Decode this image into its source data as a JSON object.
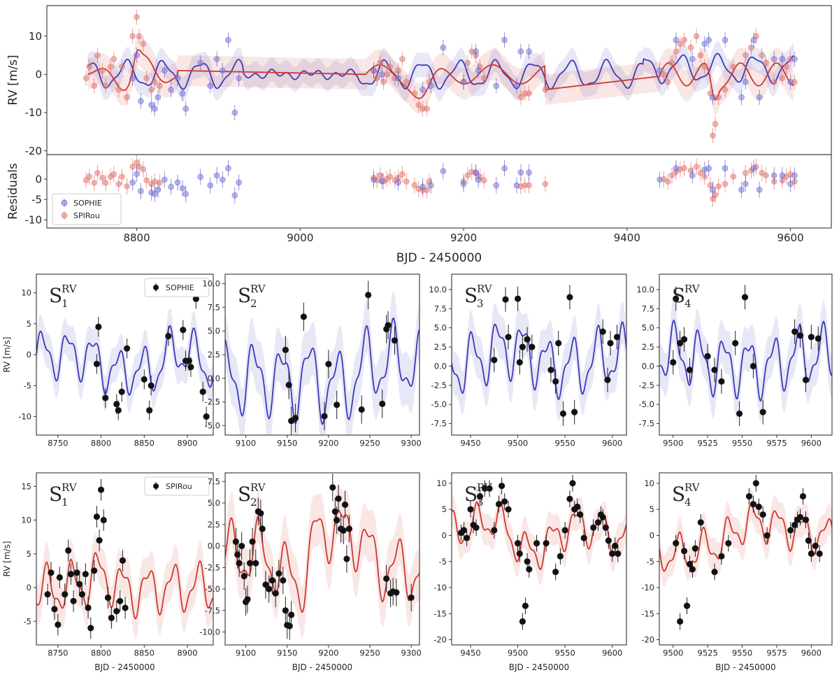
{
  "chart_data": [
    {
      "id": "main-rv",
      "type": "scatter",
      "ylabel": "RV [m/s]",
      "xlim": [
        8690,
        9650
      ],
      "ylim": [
        -21,
        18
      ],
      "yticks": [
        -20,
        -10,
        0,
        10
      ],
      "series": [
        {
          "name": "SOPHIE",
          "color": "#3a3ab8",
          "x": [
            8795,
            8800,
            8805,
            8818,
            8822,
            8826,
            8834,
            8842,
            8850,
            8856,
            8860,
            8878,
            8890,
            8898,
            8905,
            8912,
            8920,
            8925,
            9090,
            9100,
            9120,
            9150,
            9160,
            9175,
            9200,
            9215,
            9218,
            9240,
            9250,
            9265,
            9270,
            9280,
            9440,
            9460,
            9480,
            9495,
            9500,
            9505,
            9520,
            9540,
            9545,
            9555,
            9562,
            9580,
            9590,
            9600,
            9605
          ],
          "y": [
            -1,
            5,
            -7,
            -8,
            -9,
            -6,
            1,
            -4,
            -1,
            -5,
            -9,
            3,
            -3,
            4,
            1,
            9,
            -10,
            -1,
            1,
            0,
            -1,
            -4,
            -3,
            7,
            -2,
            6,
            1,
            -3,
            9,
            -3,
            6,
            6,
            1,
            9,
            4,
            8,
            9,
            -6,
            9,
            -6,
            -2,
            9,
            -6,
            4,
            4,
            -2,
            4
          ],
          "errors": [
            2,
            2,
            2,
            2,
            2,
            2,
            2,
            2,
            2,
            2,
            2,
            2,
            2,
            2,
            2,
            2,
            2,
            2,
            2,
            2,
            2,
            2,
            2,
            2,
            2,
            2,
            2,
            2,
            2,
            2,
            2,
            2,
            2,
            2,
            2,
            2,
            2,
            2,
            2,
            2,
            2,
            2,
            2,
            2,
            2,
            2,
            2
          ]
        },
        {
          "name": "SPIRou",
          "color": "#d9534f",
          "x": [
            8738,
            8742,
            8748,
            8752,
            8758,
            8762,
            8768,
            8772,
            8778,
            8782,
            8788,
            8795,
            8800,
            8803,
            8808,
            8812,
            8818,
            8822,
            8828,
            9090,
            9094,
            9098,
            9102,
            9106,
            9110,
            9116,
            9120,
            9125,
            9130,
            9140,
            9145,
            9150,
            9155,
            9158,
            9200,
            9205,
            9210,
            9215,
            9220,
            9225,
            9270,
            9275,
            9280,
            9300,
            9445,
            9450,
            9455,
            9460,
            9465,
            9470,
            9478,
            9485,
            9490,
            9495,
            9502,
            9505,
            9508,
            9512,
            9520,
            9530,
            9545,
            9552,
            9558,
            9565,
            9570,
            9580,
            9590,
            9595,
            9600,
            9605
          ],
          "y": [
            -1,
            2,
            -3,
            5,
            1,
            -3,
            2,
            4,
            -4,
            2,
            -6,
            10,
            15,
            10,
            8,
            -1,
            -4,
            -2,
            -3,
            1,
            -1,
            3,
            -2,
            0,
            2,
            -1,
            1,
            4,
            -2,
            -5,
            -8,
            -9,
            -9,
            -2,
            -2,
            3,
            6,
            5,
            2,
            -1,
            -6,
            -5,
            -5,
            -4,
            0,
            -2,
            3,
            6,
            8,
            9,
            7,
            10,
            5,
            2,
            -5,
            -16,
            -13,
            -6,
            -4,
            2,
            5,
            7,
            10,
            5,
            3,
            -2,
            -1,
            2,
            4,
            -2
          ],
          "errors": [
            2,
            2,
            2,
            2,
            2,
            2,
            2,
            2,
            2,
            2,
            2,
            2,
            2,
            2,
            2,
            2,
            2,
            2,
            2,
            2,
            2,
            2,
            2,
            2,
            2,
            2,
            2,
            2,
            2,
            2,
            2,
            2,
            2,
            2,
            2,
            2,
            2,
            2,
            2,
            2,
            2,
            2,
            2,
            2,
            2,
            2,
            2,
            2,
            2,
            2,
            2,
            2,
            2,
            2,
            2,
            2,
            2,
            2,
            2,
            2,
            2,
            2,
            2,
            2,
            2,
            2,
            2,
            2,
            2,
            2
          ]
        }
      ]
    },
    {
      "id": "main-residuals",
      "type": "scatter",
      "ylabel": "Residuals",
      "xlabel": "BJD - 2450000",
      "xlim": [
        8690,
        9650
      ],
      "xticks": [
        8800,
        9000,
        9200,
        9400,
        9600
      ],
      "ylim": [
        -12,
        6
      ],
      "yticks": [
        -10,
        -5,
        0
      ],
      "legend": {
        "position": "lower-left",
        "entries": [
          "SOPHIE",
          "SPIRou"
        ]
      }
    },
    {
      "id": "sophie-1",
      "type": "line",
      "instrument": "SOPHIE",
      "label": "S",
      "sub": "1",
      "sup": "RV",
      "legend": "SOPHIE",
      "ylabel": "RV [m/s]",
      "xlim": [
        8725,
        8930
      ],
      "xticks": [
        8750,
        8800,
        8850,
        8900
      ],
      "ylim": [
        -13,
        13
      ],
      "yticks": [
        -10,
        -5,
        0,
        5,
        10
      ],
      "tick_labels": [
        "-10",
        "-5",
        "0",
        "5",
        "10"
      ],
      "x": [
        8795,
        8797,
        8805,
        8818,
        8820,
        8824,
        8830,
        8850,
        8856,
        8858,
        8878,
        8895,
        8898,
        8902,
        8904,
        8910,
        8918,
        8922
      ],
      "y": [
        -1.5,
        4.5,
        -7,
        -8,
        -9,
        -6,
        1,
        -4,
        -9,
        -5,
        3,
        4,
        -1,
        -1,
        -2,
        9,
        -6,
        -10
      ]
    },
    {
      "id": "sophie-2",
      "type": "line",
      "instrument": "SOPHIE",
      "label": "S",
      "sub": "2",
      "sup": "RV",
      "ylabel": "",
      "xlim": [
        9075,
        9310
      ],
      "xticks": [
        9100,
        9150,
        9200,
        9250,
        9300
      ],
      "ylim": [
        -6,
        11
      ],
      "yticks": [
        -5,
        -2.5,
        0,
        2.5,
        5,
        7.5,
        10
      ],
      "tick_labels": [
        "-5.0",
        "-2.5",
        "0.0",
        "2.5",
        "5.0",
        "7.5",
        "10.0"
      ],
      "x": [
        9148,
        9152,
        9155,
        9160,
        9170,
        9195,
        9200,
        9210,
        9240,
        9248,
        9265,
        9270,
        9272,
        9280
      ],
      "y": [
        3,
        -0.7,
        -4.5,
        -4.2,
        6.5,
        -4,
        1.5,
        -2.8,
        -3.3,
        8.8,
        -2.7,
        5.2,
        5.6,
        4
      ],
      "errors": [
        1.5,
        1.5,
        1.5,
        1.5,
        1.5,
        1.5,
        1.5,
        1.5,
        1.5,
        1.5,
        1.5,
        1.5,
        1.5,
        1.5
      ]
    },
    {
      "id": "sophie-3",
      "type": "line",
      "instrument": "SOPHIE",
      "label": "S",
      "sub": "3",
      "sup": "RV",
      "ylabel": "",
      "xlim": [
        9430,
        9615
      ],
      "xticks": [
        9450,
        9500,
        9550,
        9600
      ],
      "ylim": [
        -9,
        12
      ],
      "yticks": [
        -7.5,
        -5,
        -2.5,
        0,
        2.5,
        5,
        7.5,
        10
      ],
      "tick_labels": [
        "-7.5",
        "-5.0",
        "-2.5",
        "0.0",
        "2.5",
        "5.0",
        "7.5",
        "10.0"
      ],
      "x": [
        9475,
        9487,
        9490,
        9500,
        9502,
        9505,
        9510,
        9515,
        9535,
        9540,
        9543,
        9548,
        9555,
        9560,
        9590,
        9595,
        9598,
        9605
      ],
      "y": [
        0.8,
        8.7,
        3.8,
        8.8,
        0.5,
        2.5,
        3.5,
        2.5,
        -0.5,
        -2,
        3,
        -6.2,
        9,
        -6,
        4.5,
        -1.8,
        3,
        3.8
      ]
    },
    {
      "id": "sophie-4",
      "type": "line",
      "instrument": "SOPHIE",
      "label": "S",
      "sub": "4",
      "sup": "RV",
      "ylabel": "",
      "xlim": [
        9490,
        9615
      ],
      "xticks": [
        9500,
        9525,
        9550,
        9575,
        9600
      ],
      "ylim": [
        -9,
        12
      ],
      "yticks": [
        -7.5,
        -5,
        -2.5,
        0,
        2.5,
        5,
        7.5,
        10
      ],
      "tick_labels": [
        "-7.5",
        "-5.0",
        "-2.5",
        "0.0",
        "2.5",
        "5.0",
        "7.5",
        "10.0"
      ],
      "x": [
        9500,
        9502,
        9505,
        9508,
        9512,
        9525,
        9530,
        9535,
        9545,
        9548,
        9552,
        9558,
        9565,
        9588,
        9592,
        9596,
        9600,
        9605
      ],
      "y": [
        0.5,
        8.8,
        3,
        3.5,
        -0.5,
        1.3,
        -0.5,
        -2,
        3,
        -6.2,
        9,
        0,
        -6,
        4.5,
        4,
        -1.8,
        3.8,
        3.6
      ]
    },
    {
      "id": "spirou-1",
      "type": "line",
      "instrument": "SPIRou",
      "label": "S",
      "sub": "1",
      "sup": "RV",
      "legend": "SPIRou",
      "ylabel": "RV [m/s]",
      "xlabel": "BJD - 2450000",
      "xlim": [
        8725,
        8930
      ],
      "xticks": [
        8750,
        8800,
        8850,
        8900
      ],
      "ylim": [
        -8.5,
        17
      ],
      "yticks": [
        -5,
        0,
        5,
        10,
        15
      ],
      "tick_labels": [
        "-5",
        "0",
        "5",
        "10",
        "15"
      ],
      "x": [
        8738,
        8742,
        8746,
        8750,
        8752,
        8758,
        8762,
        8765,
        8768,
        8772,
        8775,
        8778,
        8782,
        8785,
        8788,
        8792,
        8795,
        8798,
        8800,
        8803,
        8808,
        8812,
        8818,
        8822,
        8825,
        8828
      ],
      "y": [
        -1,
        2.2,
        -3.2,
        -5.5,
        1.5,
        -1,
        5.5,
        2,
        -2,
        2.2,
        0.5,
        -1,
        2,
        -3,
        -6,
        2.5,
        10.5,
        7,
        14.5,
        10,
        -1.5,
        -4.5,
        -3.5,
        -2,
        4,
        -3
      ]
    },
    {
      "id": "spirou-2",
      "type": "line",
      "instrument": "SPIRou",
      "label": "S",
      "sub": "2",
      "sup": "RV",
      "ylabel": "",
      "xlabel": "BJD - 2450000",
      "xlim": [
        9075,
        9310
      ],
      "xticks": [
        9100,
        9150,
        9200,
        9250,
        9300
      ],
      "ylim": [
        -11.5,
        8.5
      ],
      "yticks": [
        -10,
        -7.5,
        -5,
        -2.5,
        0,
        2.5,
        5,
        7.5
      ],
      "tick_labels": [
        "-10.0",
        "-7.5",
        "-5.0",
        "-2.5",
        "0.0",
        "2.5",
        "5.0",
        "7.5"
      ],
      "x": [
        9088,
        9090,
        9092,
        9095,
        9098,
        9100,
        9102,
        9105,
        9108,
        9112,
        9115,
        9118,
        9120,
        9124,
        9128,
        9132,
        9136,
        9140,
        9145,
        9148,
        9150,
        9153,
        9155,
        9205,
        9208,
        9210,
        9212,
        9215,
        9218,
        9220,
        9222,
        9225,
        9270,
        9275,
        9278,
        9282,
        9300
      ],
      "y": [
        0.5,
        -1,
        -2,
        0,
        -3.5,
        -6.5,
        -6.2,
        -2,
        0.5,
        -2,
        4,
        3.8,
        2,
        -4.5,
        -5,
        -4,
        -5.5,
        -3.2,
        -4,
        -7.5,
        -9.2,
        -9.3,
        -8,
        6.8,
        4,
        3,
        5.5,
        2,
        1.8,
        4.8,
        -1.5,
        2,
        -3.8,
        -5.5,
        -5.3,
        -5.4,
        -6
      ]
    },
    {
      "id": "spirou-3",
      "type": "line",
      "instrument": "SPIRou",
      "label": "S",
      "sub": "3",
      "sup": "RV",
      "ylabel": "",
      "xlabel": "BJD - 2450000",
      "xlim": [
        9430,
        9615
      ],
      "xticks": [
        9450,
        9500,
        9550,
        9600
      ],
      "ylim": [
        -21,
        12
      ],
      "yticks": [
        -20,
        -15,
        -10,
        -5,
        0,
        5,
        10
      ],
      "tick_labels": [
        "-20",
        "-15",
        "-10",
        "-5",
        "0",
        "5",
        "10"
      ],
      "x": [
        9440,
        9443,
        9446,
        9450,
        9453,
        9456,
        9460,
        9465,
        9470,
        9475,
        9480,
        9483,
        9486,
        9490,
        9500,
        9502,
        9505,
        9508,
        9510,
        9512,
        9520,
        9530,
        9540,
        9545,
        9550,
        9555,
        9558,
        9560,
        9563,
        9566,
        9570,
        9580,
        9585,
        9588,
        9590,
        9593,
        9596,
        9600,
        9603,
        9606
      ],
      "y": [
        0.5,
        1,
        -0.5,
        5,
        2,
        1.5,
        7.5,
        9,
        9,
        1,
        6,
        9.5,
        6.5,
        5,
        -1.5,
        -3.5,
        -16.5,
        -13.5,
        -5,
        -6.5,
        -1.5,
        -1.5,
        -7,
        -4,
        1,
        7,
        10,
        5,
        5.5,
        4,
        -0.5,
        1.5,
        2.5,
        4,
        3.5,
        1.5,
        -1,
        -3.5,
        -2,
        -3.5
      ]
    },
    {
      "id": "spirou-4",
      "type": "line",
      "instrument": "SPIRou",
      "label": "S",
      "sub": "4",
      "sup": "RV",
      "ylabel": "",
      "xlabel": "BJD - 2450000",
      "xlim": [
        9490,
        9615
      ],
      "xticks": [
        9500,
        9525,
        9550,
        9575,
        9600
      ],
      "ylim": [
        -21,
        12
      ],
      "yticks": [
        -20,
        -15,
        -10,
        -5,
        0,
        5,
        10
      ],
      "tick_labels": [
        "-20",
        "-15",
        "-10",
        "-5",
        "0",
        "5",
        "10"
      ],
      "x": [
        9502,
        9505,
        9508,
        9510,
        9512,
        9514,
        9516,
        9520,
        9530,
        9535,
        9540,
        9555,
        9558,
        9560,
        9562,
        9565,
        9568,
        9585,
        9588,
        9590,
        9592,
        9594,
        9596,
        9598,
        9600,
        9603,
        9606
      ],
      "y": [
        -1.5,
        -16.5,
        -3,
        -13.5,
        -5.5,
        -6.5,
        -2.5,
        2.5,
        -7,
        -4,
        -1.5,
        7.5,
        6,
        10,
        5.5,
        4,
        0,
        1,
        2,
        3,
        3.5,
        7.5,
        3,
        -1,
        -3.5,
        -2,
        -3.5
      ]
    }
  ]
}
